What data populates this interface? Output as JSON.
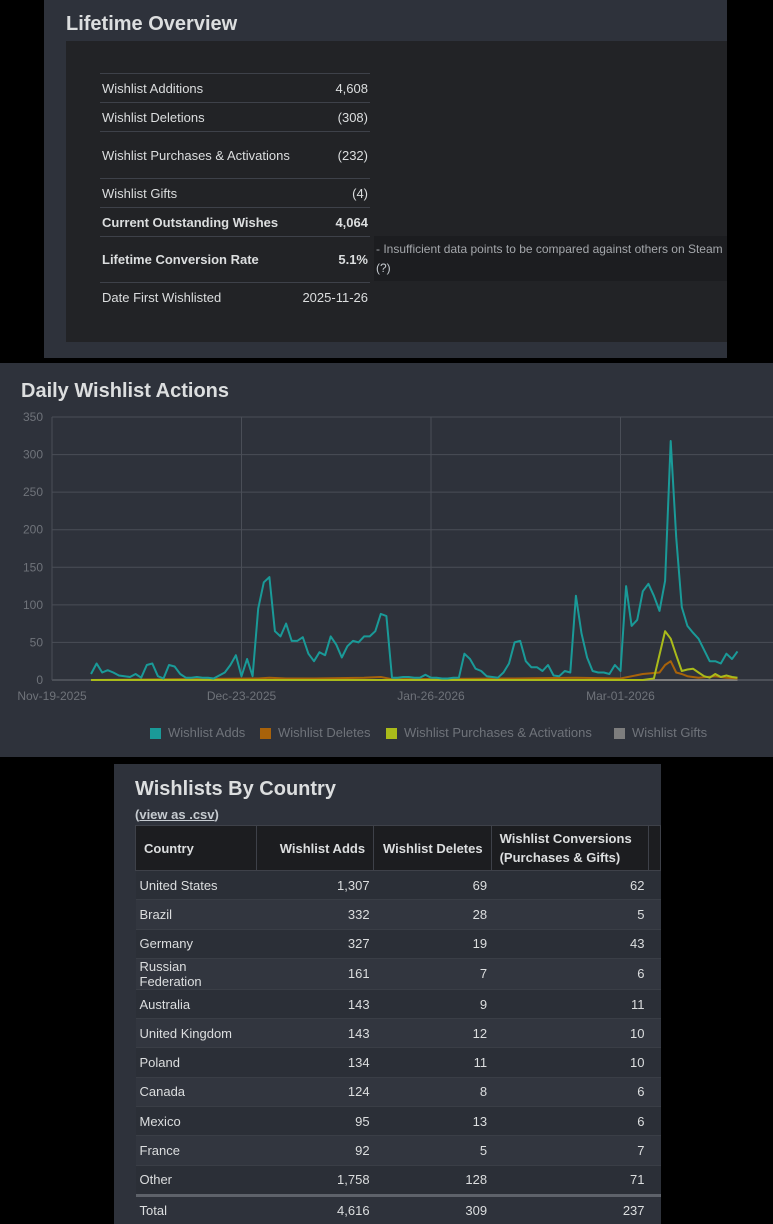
{
  "lifetime_overview": {
    "title": "Lifetime Overview",
    "rows": [
      {
        "label": "Wishlist Additions",
        "value": "4,608"
      },
      {
        "label": "Wishlist Deletions",
        "value": "(308)"
      },
      {
        "label": "Wishlist Purchases & Activations",
        "value": "(232)"
      },
      {
        "label": "Wishlist Gifts",
        "value": "(4)"
      },
      {
        "label": "Current Outstanding Wishes",
        "value": "4,064"
      },
      {
        "label": "Lifetime Conversion Rate",
        "value": "5.1%"
      },
      {
        "label": "Date First Wishlisted",
        "value": "2025-11-26"
      }
    ],
    "conversion_note": "- Insufficient data points to be compared against others on Steam",
    "help_link": "(?)"
  },
  "daily_wishlist_actions": {
    "title": "Daily Wishlist Actions"
  },
  "chart_data": {
    "type": "line",
    "title": "Daily Wishlist Actions",
    "x_tick_labels": [
      "Nov-19-2025",
      "Dec-23-2025",
      "Jan-26-2026",
      "Mar-01-2026"
    ],
    "y_tick_labels": [
      "0",
      "50",
      "100",
      "150",
      "200",
      "250",
      "300",
      "350"
    ],
    "ylim": [
      0,
      350
    ],
    "xlim": [
      "2025-11-19",
      "2026-03-22"
    ],
    "grid": true,
    "legend_position": "bottom",
    "series": [
      {
        "name": "Wishlist Adds",
        "color": "#1a9a98",
        "points": [
          [
            "2025-11-26",
            8
          ],
          [
            "2025-11-27",
            22
          ],
          [
            "2025-11-28",
            10
          ],
          [
            "2025-11-29",
            13
          ],
          [
            "2025-11-30",
            10
          ],
          [
            "2025-12-01",
            6
          ],
          [
            "2025-12-02",
            5
          ],
          [
            "2025-12-03",
            4
          ],
          [
            "2025-12-04",
            8
          ],
          [
            "2025-12-05",
            3
          ],
          [
            "2025-12-06",
            20
          ],
          [
            "2025-12-07",
            22
          ],
          [
            "2025-12-08",
            5
          ],
          [
            "2025-12-09",
            2
          ],
          [
            "2025-12-10",
            20
          ],
          [
            "2025-12-11",
            18
          ],
          [
            "2025-12-12",
            8
          ],
          [
            "2025-12-13",
            3
          ],
          [
            "2025-12-14",
            3
          ],
          [
            "2025-12-15",
            4
          ],
          [
            "2025-12-16",
            3
          ],
          [
            "2025-12-17",
            3
          ],
          [
            "2025-12-18",
            2
          ],
          [
            "2025-12-19",
            6
          ],
          [
            "2025-12-20",
            10
          ],
          [
            "2025-12-21",
            20
          ],
          [
            "2025-12-22",
            33
          ],
          [
            "2025-12-23",
            5
          ],
          [
            "2025-12-24",
            28
          ],
          [
            "2025-12-25",
            5
          ],
          [
            "2025-12-26",
            95
          ],
          [
            "2025-12-27",
            130
          ],
          [
            "2025-12-28",
            137
          ],
          [
            "2025-12-29",
            65
          ],
          [
            "2025-12-30",
            58
          ],
          [
            "2025-12-31",
            75
          ],
          [
            "2026-01-01",
            52
          ],
          [
            "2026-01-02",
            52
          ],
          [
            "2026-01-03",
            57
          ],
          [
            "2026-01-04",
            35
          ],
          [
            "2026-01-05",
            25
          ],
          [
            "2026-01-06",
            37
          ],
          [
            "2026-01-07",
            33
          ],
          [
            "2026-01-08",
            58
          ],
          [
            "2026-01-09",
            47
          ],
          [
            "2026-01-10",
            30
          ],
          [
            "2026-01-11",
            45
          ],
          [
            "2026-01-12",
            52
          ],
          [
            "2026-01-13",
            50
          ],
          [
            "2026-01-14",
            58
          ],
          [
            "2026-01-15",
            58
          ],
          [
            "2026-01-16",
            65
          ],
          [
            "2026-01-17",
            88
          ],
          [
            "2026-01-18",
            85
          ],
          [
            "2026-01-19",
            3
          ],
          [
            "2026-01-20",
            3
          ],
          [
            "2026-01-21",
            4
          ],
          [
            "2026-01-22",
            4
          ],
          [
            "2026-01-23",
            3
          ],
          [
            "2026-01-24",
            3
          ],
          [
            "2026-01-25",
            7
          ],
          [
            "2026-01-26",
            3
          ],
          [
            "2026-01-27",
            3
          ],
          [
            "2026-01-28",
            2
          ],
          [
            "2026-01-29",
            2
          ],
          [
            "2026-01-30",
            3
          ],
          [
            "2026-01-31",
            3
          ],
          [
            "2026-02-01",
            35
          ],
          [
            "2026-02-02",
            28
          ],
          [
            "2026-02-03",
            15
          ],
          [
            "2026-02-04",
            12
          ],
          [
            "2026-02-05",
            5
          ],
          [
            "2026-02-06",
            4
          ],
          [
            "2026-02-07",
            3
          ],
          [
            "2026-02-08",
            10
          ],
          [
            "2026-02-09",
            22
          ],
          [
            "2026-02-10",
            50
          ],
          [
            "2026-02-11",
            52
          ],
          [
            "2026-02-12",
            25
          ],
          [
            "2026-02-13",
            17
          ],
          [
            "2026-02-14",
            17
          ],
          [
            "2026-02-15",
            12
          ],
          [
            "2026-02-16",
            20
          ],
          [
            "2026-02-17",
            6
          ],
          [
            "2026-02-18",
            5
          ],
          [
            "2026-02-19",
            12
          ],
          [
            "2026-02-20",
            10
          ],
          [
            "2026-02-21",
            112
          ],
          [
            "2026-02-22",
            62
          ],
          [
            "2026-02-23",
            30
          ],
          [
            "2026-02-24",
            12
          ],
          [
            "2026-02-25",
            10
          ],
          [
            "2026-02-26",
            10
          ],
          [
            "2026-02-27",
            8
          ],
          [
            "2026-02-28",
            20
          ],
          [
            "2026-03-01",
            12
          ],
          [
            "2026-03-02",
            125
          ],
          [
            "2026-03-03",
            72
          ],
          [
            "2026-03-04",
            80
          ],
          [
            "2026-03-05",
            118
          ],
          [
            "2026-03-06",
            128
          ],
          [
            "2026-03-07",
            112
          ],
          [
            "2026-03-08",
            92
          ],
          [
            "2026-03-09",
            132
          ],
          [
            "2026-03-10",
            318
          ],
          [
            "2026-03-11",
            190
          ],
          [
            "2026-03-12",
            97
          ],
          [
            "2026-03-13",
            72
          ],
          [
            "2026-03-14",
            63
          ],
          [
            "2026-03-15",
            55
          ],
          [
            "2026-03-16",
            40
          ],
          [
            "2026-03-17",
            25
          ],
          [
            "2026-03-18",
            25
          ],
          [
            "2026-03-19",
            22
          ],
          [
            "2026-03-20",
            35
          ],
          [
            "2026-03-21",
            28
          ],
          [
            "2026-03-22",
            38
          ]
        ]
      },
      {
        "name": "Wishlist Deletes",
        "color": "#a8620a",
        "points": [
          [
            "2025-11-26",
            0
          ],
          [
            "2025-12-26",
            2
          ],
          [
            "2025-12-28",
            3
          ],
          [
            "2025-12-31",
            2
          ],
          [
            "2026-01-05",
            2
          ],
          [
            "2026-01-14",
            3
          ],
          [
            "2026-01-17",
            4
          ],
          [
            "2026-01-19",
            1
          ],
          [
            "2026-02-10",
            2
          ],
          [
            "2026-02-21",
            3
          ],
          [
            "2026-03-01",
            2
          ],
          [
            "2026-03-05",
            8
          ],
          [
            "2026-03-08",
            10
          ],
          [
            "2026-03-09",
            20
          ],
          [
            "2026-03-10",
            25
          ],
          [
            "2026-03-11",
            10
          ],
          [
            "2026-03-12",
            8
          ],
          [
            "2026-03-13",
            5
          ],
          [
            "2026-03-15",
            3
          ],
          [
            "2026-03-18",
            5
          ],
          [
            "2026-03-20",
            3
          ],
          [
            "2026-03-22",
            2
          ]
        ]
      },
      {
        "name": "Wishlist Purchases & Activations",
        "color": "#aabb1a",
        "points": [
          [
            "2025-11-26",
            0
          ],
          [
            "2026-03-05",
            0
          ],
          [
            "2026-03-07",
            2
          ],
          [
            "2026-03-09",
            65
          ],
          [
            "2026-03-10",
            55
          ],
          [
            "2026-03-11",
            33
          ],
          [
            "2026-03-12",
            12
          ],
          [
            "2026-03-13",
            14
          ],
          [
            "2026-03-14",
            15
          ],
          [
            "2026-03-15",
            10
          ],
          [
            "2026-03-16",
            5
          ],
          [
            "2026-03-17",
            3
          ],
          [
            "2026-03-18",
            8
          ],
          [
            "2026-03-19",
            4
          ],
          [
            "2026-03-20",
            6
          ],
          [
            "2026-03-21",
            4
          ],
          [
            "2026-03-22",
            3
          ]
        ]
      },
      {
        "name": "Wishlist Gifts",
        "color": "#7d7d7d",
        "points": [
          [
            "2025-11-26",
            0
          ],
          [
            "2026-03-22",
            0
          ]
        ]
      }
    ]
  },
  "wishlists_by_country": {
    "title": "Wishlists By Country",
    "csv_prefix": "(",
    "csv_link": "view as .csv",
    "csv_suffix": ")",
    "columns": [
      "Country",
      "Wishlist Adds",
      "Wishlist Deletes",
      "Wishlist Conversions (Purchases & Gifts)"
    ],
    "rows": [
      {
        "country": "United States",
        "adds": "1,307",
        "deletes": "69",
        "conversions": "62"
      },
      {
        "country": "Brazil",
        "adds": "332",
        "deletes": "28",
        "conversions": "5"
      },
      {
        "country": "Germany",
        "adds": "327",
        "deletes": "19",
        "conversions": "43"
      },
      {
        "country": "Russian Federation",
        "adds": "161",
        "deletes": "7",
        "conversions": "6"
      },
      {
        "country": "Australia",
        "adds": "143",
        "deletes": "9",
        "conversions": "11"
      },
      {
        "country": "United Kingdom",
        "adds": "143",
        "deletes": "12",
        "conversions": "10"
      },
      {
        "country": "Poland",
        "adds": "134",
        "deletes": "11",
        "conversions": "10"
      },
      {
        "country": "Canada",
        "adds": "124",
        "deletes": "8",
        "conversions": "6"
      },
      {
        "country": "Mexico",
        "adds": "95",
        "deletes": "13",
        "conversions": "6"
      },
      {
        "country": "France",
        "adds": "92",
        "deletes": "5",
        "conversions": "7"
      },
      {
        "country": "Other",
        "adds": "1,758",
        "deletes": "128",
        "conversions": "71"
      }
    ],
    "total": {
      "label": "Total",
      "adds": "4,616",
      "deletes": "309",
      "conversions": "237"
    }
  }
}
